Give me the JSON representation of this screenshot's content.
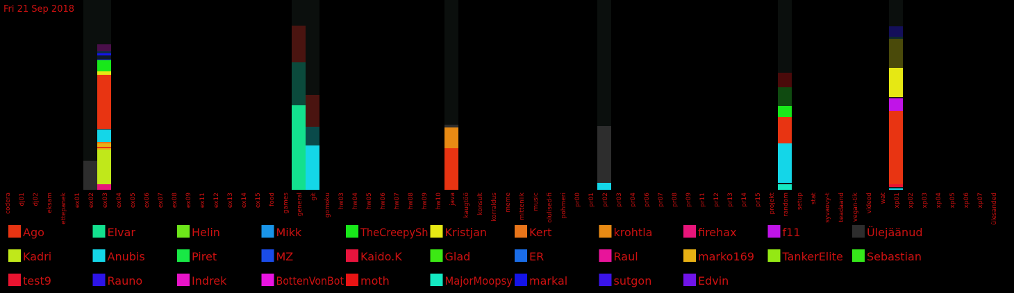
{
  "date_label": "Fri 21 Sep 2018",
  "colors": {
    "label_text": "#cc1111",
    "background": "#000000",
    "column_bg": "#0b0f0d"
  },
  "chart_data": {
    "type": "bar",
    "stacked": true,
    "categories": [
      "codera",
      "dj01",
      "dj02",
      "eksam",
      "ettepanek",
      "ex01",
      "ex02",
      "ex03",
      "ex04",
      "ex05",
      "ex06",
      "ex07",
      "ex08",
      "ex09",
      "ex11",
      "ex12",
      "ex13",
      "ex14",
      "ex15",
      "food",
      "games",
      "general",
      "git",
      "gomoku",
      "hw03",
      "hw04",
      "hw05",
      "hw06",
      "hw07",
      "hw08",
      "hw09",
      "hw10",
      "java",
      "kaugtöö",
      "konsult",
      "korraldus",
      "meme",
      "mitteniik",
      "music",
      "olulised-fi",
      "pohmeri",
      "pr00",
      "pr01",
      "pr02",
      "pr03",
      "pr04",
      "pr06",
      "pr07",
      "pr08",
      "pr09",
      "pr11",
      "pr12",
      "pr13",
      "pr14",
      "pr15",
      "projekt",
      "random",
      "setup",
      "stat",
      "syvaovy-t",
      "teadaand",
      "vegan-tik",
      "videod",
      "wat",
      "xp01",
      "xp02",
      "xp03",
      "xp04",
      "xp05",
      "xp06",
      "xp07",
      "ülesanded"
    ],
    "legend": [
      {
        "name": "Ago",
        "color": "#e83412"
      },
      {
        "name": "Elvar",
        "color": "#13e08e"
      },
      {
        "name": "Helin",
        "color": "#6de61a"
      },
      {
        "name": "Mikk",
        "color": "#1a95e8"
      },
      {
        "name": "TheCreepySh",
        "color": "#18e81a"
      },
      {
        "name": "Kristjan",
        "color": "#e6e814"
      },
      {
        "name": "Kert",
        "color": "#e8751a"
      },
      {
        "name": "krohtla",
        "color": "#e88a14"
      },
      {
        "name": "firehax",
        "color": "#e8157a"
      },
      {
        "name": "f11",
        "color": "#c014e8"
      },
      {
        "name": "Ülejäänud",
        "color": "#2d2d2d"
      },
      {
        "name": "Kadri",
        "color": "#c0e81a"
      },
      {
        "name": "Anubis",
        "color": "#14d6e8"
      },
      {
        "name": "Piret",
        "color": "#18e845"
      },
      {
        "name": "MZ",
        "color": "#1a4ce8"
      },
      {
        "name": "Kaido.K",
        "color": "#e8143d"
      },
      {
        "name": "Glad",
        "color": "#3ce814"
      },
      {
        "name": "ER",
        "color": "#1a6de8"
      },
      {
        "name": "Raul",
        "color": "#e8149a"
      },
      {
        "name": "marko169",
        "color": "#e8b014"
      },
      {
        "name": "TankerElite",
        "color": "#94e814"
      },
      {
        "name": "Sebastian",
        "color": "#36e81a"
      },
      {
        "name": "test9",
        "color": "#e81430"
      },
      {
        "name": "Rauno",
        "color": "#2d14e8"
      },
      {
        "name": "Indrek",
        "color": "#e814c8"
      },
      {
        "name": "BottenVonBot",
        "color": "#e814e0"
      },
      {
        "name": "moth",
        "color": "#e81414"
      },
      {
        "name": "MajorMoopsy",
        "color": "#14e8c2"
      },
      {
        "name": "markal",
        "color": "#1414e8"
      },
      {
        "name": "sutgon",
        "color": "#3a14e8"
      },
      {
        "name": "Edvin",
        "color": "#7014e8"
      }
    ],
    "stacks": [
      {
        "category": "ex02",
        "segments": [
          {
            "color": "#2d2d2d",
            "value": 42
          }
        ]
      },
      {
        "category": "ex03",
        "segments": [
          {
            "color": "#e8157a",
            "value": 8
          },
          {
            "color": "#c0e81a",
            "value": 50
          },
          {
            "color": "#e8b014",
            "value": 2
          },
          {
            "color": "#e83412",
            "value": 2
          },
          {
            "color": "#e8b014",
            "value": 5
          },
          {
            "color": "#e8751a",
            "value": 2
          },
          {
            "color": "#14d6e8",
            "value": 18
          },
          {
            "color": "#3a1a1a",
            "value": 1
          },
          {
            "color": "#e83412",
            "value": 78
          },
          {
            "color": "#e6e814",
            "value": 5
          },
          {
            "color": "#18e81a",
            "value": 16
          },
          {
            "color": "#1a4ce8",
            "value": 1
          },
          {
            "color": "#0f1a2a",
            "value": 6
          },
          {
            "color": "#1414e8",
            "value": 3
          },
          {
            "color": "#0f2a4a",
            "value": 3
          },
          {
            "color": "#4a0f4a",
            "value": 10
          }
        ]
      },
      {
        "category": "general",
        "segments": [
          {
            "color": "#13e08e",
            "value": 122
          },
          {
            "color": "#0b4a3c",
            "value": 62
          },
          {
            "color": "#4a1410",
            "value": 53
          }
        ]
      },
      {
        "category": "git",
        "segments": [
          {
            "color": "#14d6e8",
            "value": 64
          },
          {
            "color": "#0a4a4a",
            "value": 27
          },
          {
            "color": "#4a1410",
            "value": 46
          }
        ]
      },
      {
        "category": "java",
        "segments": [
          {
            "color": "#e83412",
            "value": 60
          },
          {
            "color": "#e88a14",
            "value": 30
          },
          {
            "color": "#2d2d2d",
            "value": 4
          }
        ]
      },
      {
        "category": "pr02",
        "segments": [
          {
            "color": "#14d6e8",
            "value": 10
          },
          {
            "color": "#2d2d2d",
            "value": 82
          }
        ]
      },
      {
        "category": "random",
        "segments": [
          {
            "color": "#14e8c2",
            "value": 8
          },
          {
            "color": "#0a1a1a",
            "value": 2
          },
          {
            "color": "#14d6e8",
            "value": 57
          },
          {
            "color": "#e83412",
            "value": 38
          },
          {
            "color": "#18e81a",
            "value": 16
          },
          {
            "color": "#0f4a10",
            "value": 27
          },
          {
            "color": "#4a0a0a",
            "value": 21
          }
        ]
      },
      {
        "category": "xp01",
        "segments": [
          {
            "color": "#14d6e8",
            "value": 2
          },
          {
            "color": "#1a1a1a",
            "value": 2
          },
          {
            "color": "#e81430",
            "value": 4
          },
          {
            "color": "#e83412",
            "value": 106
          },
          {
            "color": "#c014e8",
            "value": 18
          },
          {
            "color": "#2a1a1a",
            "value": 2
          },
          {
            "color": "#e6e814",
            "value": 42
          },
          {
            "color": "#4a4a0a",
            "value": 42
          },
          {
            "color": "#0f2a2a",
            "value": 3
          },
          {
            "color": "#140f5a",
            "value": 15
          }
        ]
      }
    ]
  }
}
